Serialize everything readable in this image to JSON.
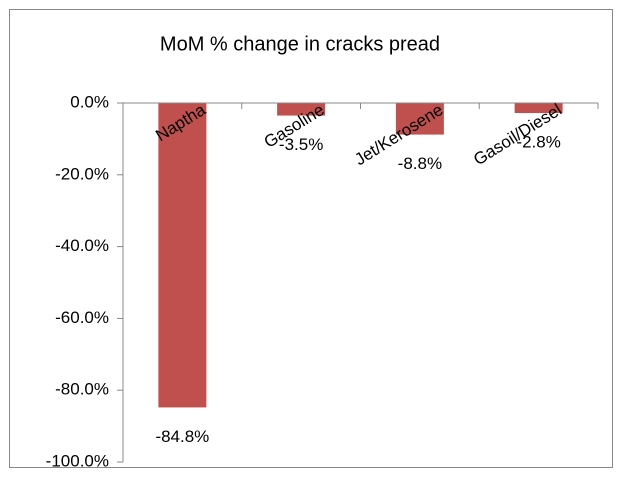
{
  "chart_data": {
    "type": "bar",
    "title": "MoM % change in cracks pread",
    "categories": [
      "Naptha",
      "Gasoline",
      "Jet/Kerosene",
      "Gasoil/Diesel"
    ],
    "values": [
      -84.8,
      -3.5,
      -8.8,
      -2.8
    ],
    "value_labels": [
      "-84.8%",
      "-3.5%",
      "-8.8%",
      "-2.8%"
    ],
    "color": "#c0504d",
    "ylim": [
      -100,
      0
    ],
    "yticks": [
      {
        "value": 0,
        "label": "0.0%"
      },
      {
        "value": -20,
        "label": "-20.0%"
      },
      {
        "value": -40,
        "label": "-40.0%"
      },
      {
        "value": -60,
        "label": "-60.0%"
      },
      {
        "value": -80,
        "label": "-80.0%"
      },
      {
        "value": -100,
        "label": "-100.0%"
      }
    ]
  }
}
